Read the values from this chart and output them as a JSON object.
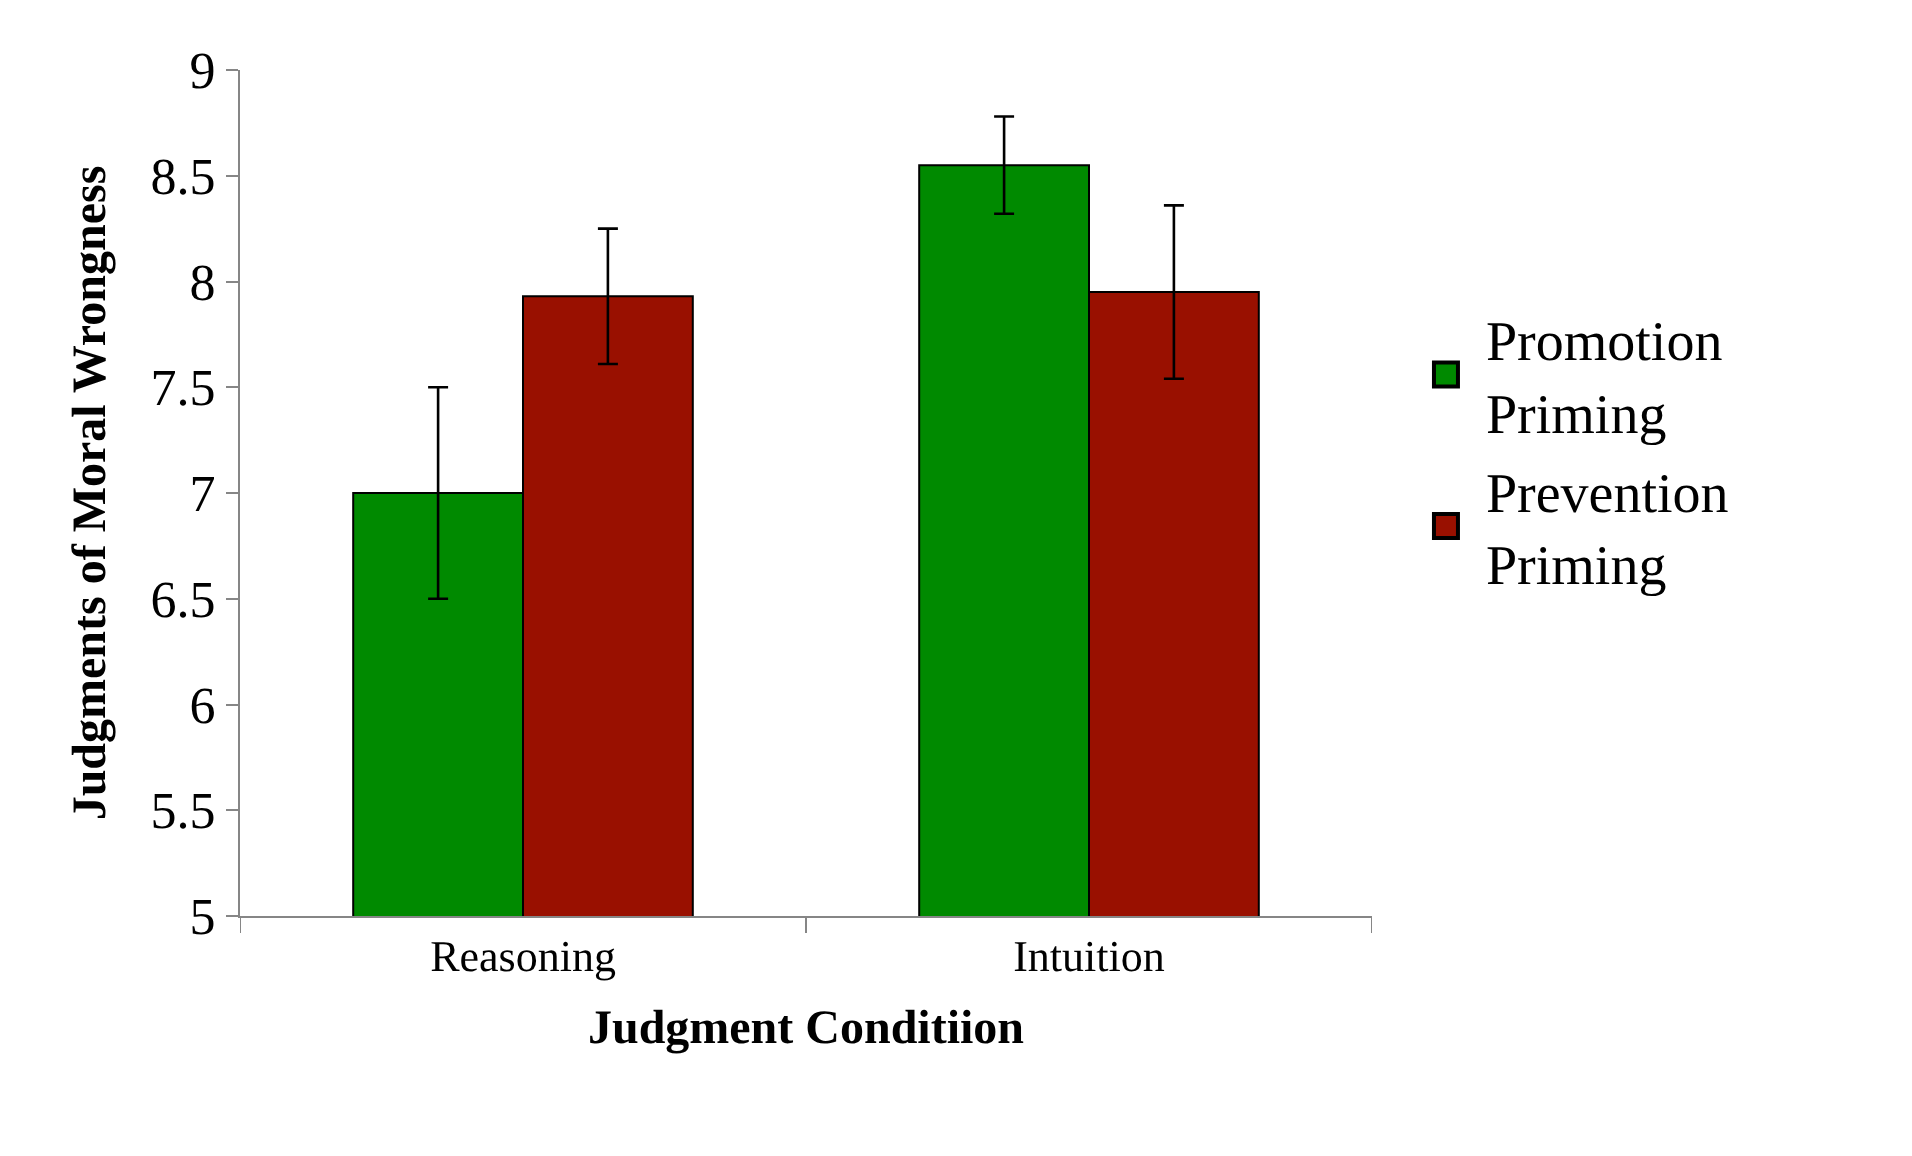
{
  "chart_data": {
    "type": "bar",
    "xlabel": "Judgment Conditiion",
    "ylabel": "Judgments of Moral Wrongness",
    "categories": [
      "Reasoning",
      "Intuition"
    ],
    "series": [
      {
        "name": "Promotion Priming",
        "color": "#008a00",
        "values": [
          7.0,
          8.55
        ],
        "errors": [
          0.5,
          0.23
        ]
      },
      {
        "name": "Prevention Priming",
        "color": "#991000",
        "values": [
          7.93,
          7.95
        ],
        "errors": [
          0.32,
          0.41
        ]
      }
    ],
    "ylim": [
      5,
      9
    ],
    "yticks": [
      5,
      5.5,
      6,
      6.5,
      7,
      7.5,
      8,
      8.5,
      9
    ],
    "legend": "right"
  }
}
